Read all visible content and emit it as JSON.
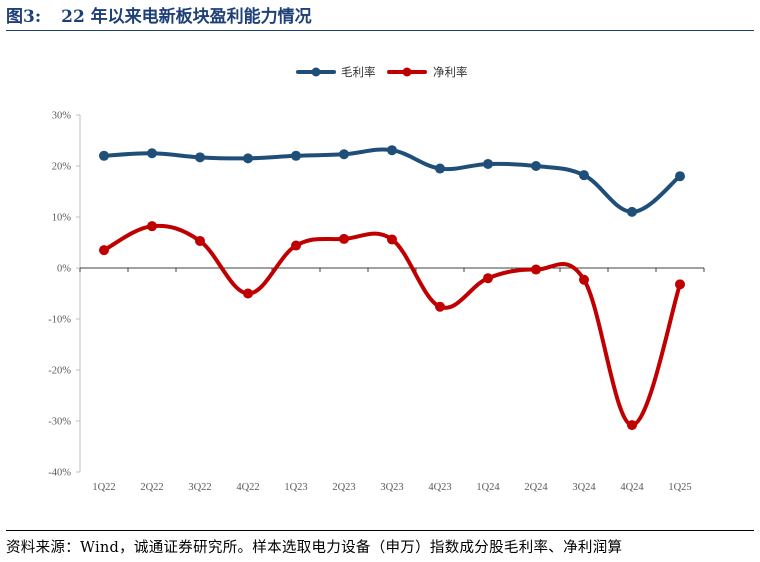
{
  "figure": {
    "label": "图3:",
    "title": "22 年以来电新板块盈利能力情况"
  },
  "source": "资料来源：Wind，诚通证券研究所。样本选取电力设备（申万）指数成分股毛利率、净利润算",
  "chart_data": {
    "type": "line",
    "categories": [
      "1Q22",
      "2Q22",
      "3Q22",
      "4Q22",
      "1Q23",
      "2Q23",
      "3Q23",
      "4Q23",
      "1Q24",
      "2Q24",
      "3Q24",
      "4Q24",
      "1Q25"
    ],
    "series": [
      {
        "name": "毛利率",
        "color": "#1f4e79",
        "values": [
          22.0,
          22.5,
          21.7,
          21.5,
          22.0,
          22.3,
          23.1,
          19.5,
          20.4,
          20.0,
          18.2,
          11.0,
          18.0
        ]
      },
      {
        "name": "净利率",
        "color": "#c00000",
        "values": [
          3.5,
          8.2,
          5.3,
          -5.0,
          4.4,
          5.7,
          5.6,
          -7.6,
          -2.0,
          -0.3,
          -2.3,
          -30.8,
          -3.2
        ]
      }
    ],
    "y_ticks": [
      "30%",
      "20%",
      "10%",
      "0%",
      "-10%",
      "-20%",
      "-30%",
      "-40%"
    ],
    "ylim": [
      -40,
      30
    ],
    "ytick_step": 10,
    "legend_position": "top-center",
    "grid": false,
    "smooth": true,
    "xlabel": "",
    "ylabel": ""
  }
}
